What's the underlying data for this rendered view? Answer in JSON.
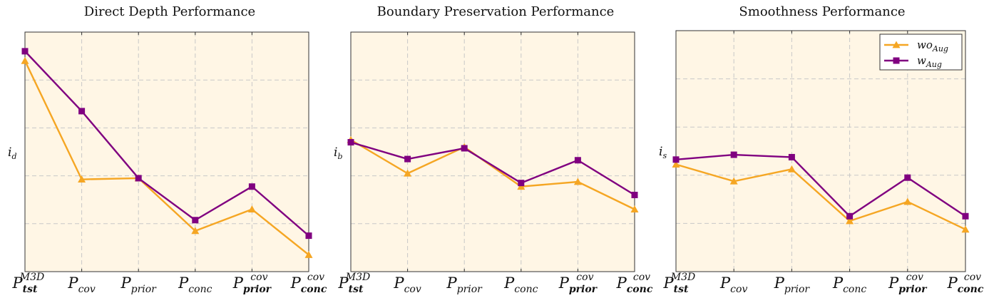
{
  "chart_data": [
    {
      "type": "line",
      "title": "Direct Depth Performance",
      "ylabel": {
        "base": "i",
        "sub": "d"
      },
      "ylim": [
        0,
        100
      ],
      "grid": true,
      "categories": [
        {
          "base": "P",
          "sub": "tst",
          "sup": "M3D"
        },
        {
          "base": "P",
          "sub": "cov",
          "sup": ""
        },
        {
          "base": "P",
          "sub": "prior",
          "sup": ""
        },
        {
          "base": "P",
          "sub": "conc",
          "sup": ""
        },
        {
          "base": "P",
          "sub": "prior",
          "sup": "cov"
        },
        {
          "base": "P",
          "sub": "conc",
          "sup": "cov"
        }
      ],
      "series": [
        {
          "name": "wo_Aug",
          "color": "#F5A623",
          "marker": "triangle",
          "values": [
            88,
            38.5,
            39,
            17,
            26,
            7
          ]
        },
        {
          "name": "w_Aug",
          "color": "#800080",
          "marker": "square",
          "values": [
            92,
            67,
            39,
            21.5,
            35.5,
            15
          ]
        }
      ]
    },
    {
      "type": "line",
      "title": "Boundary Preservation Performance",
      "ylabel": {
        "base": "i",
        "sub": "b"
      },
      "ylim": [
        0,
        100
      ],
      "grid": true,
      "categories": [
        {
          "base": "P",
          "sub": "tst",
          "sup": "M3D"
        },
        {
          "base": "P",
          "sub": "cov",
          "sup": ""
        },
        {
          "base": "P",
          "sub": "prior",
          "sup": ""
        },
        {
          "base": "P",
          "sub": "conc",
          "sup": ""
        },
        {
          "base": "P",
          "sub": "prior",
          "sup": "cov"
        },
        {
          "base": "P",
          "sub": "conc",
          "sup": "cov"
        }
      ],
      "series": [
        {
          "name": "wo_Aug",
          "color": "#F5A623",
          "marker": "triangle",
          "values": [
            55,
            41,
            52,
            35.5,
            37.5,
            26
          ]
        },
        {
          "name": "w_Aug",
          "color": "#800080",
          "marker": "square",
          "values": [
            54,
            47,
            51.5,
            37,
            46.5,
            32
          ]
        }
      ]
    },
    {
      "type": "line",
      "title": "Smoothness Performance",
      "ylabel": {
        "base": "i",
        "sub": "s"
      },
      "ylim": [
        0,
        100
      ],
      "grid": true,
      "legend": "top-right",
      "categories": [
        {
          "base": "P",
          "sub": "tst",
          "sup": "M3D"
        },
        {
          "base": "P",
          "sub": "cov",
          "sup": ""
        },
        {
          "base": "P",
          "sub": "prior",
          "sup": ""
        },
        {
          "base": "P",
          "sub": "conc",
          "sup": ""
        },
        {
          "base": "P",
          "sub": "prior",
          "sup": "cov"
        },
        {
          "base": "P",
          "sub": "conc",
          "sup": "cov"
        }
      ],
      "series": [
        {
          "name": "wo_Aug",
          "label": {
            "base": "wo",
            "sub": "Aug"
          },
          "color": "#F5A623",
          "marker": "triangle",
          "values": [
            44.5,
            37.5,
            42.5,
            21,
            29,
            17.5
          ]
        },
        {
          "name": "w_Aug",
          "label": {
            "base": "w",
            "sub": "Aug"
          },
          "color": "#800080",
          "marker": "square",
          "values": [
            46.5,
            48.5,
            47.5,
            23,
            39,
            23
          ]
        }
      ]
    }
  ]
}
